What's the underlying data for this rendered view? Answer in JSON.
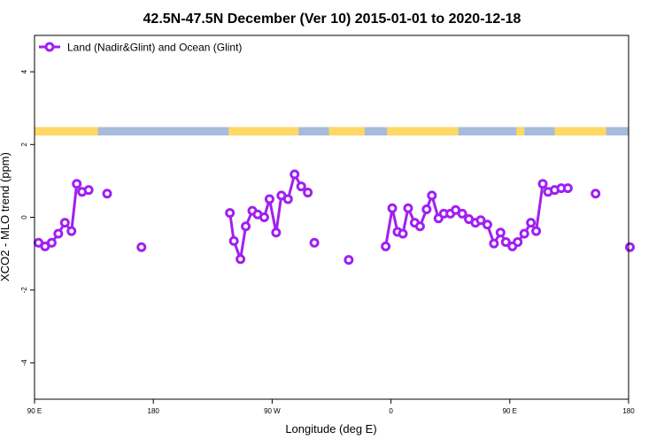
{
  "chart_data": {
    "type": "line",
    "title": "42.5N-47.5N December (Ver 10)   2015-01-01 to 2020-12-18",
    "xlabel": "Longitude (deg E)",
    "ylabel": "XCO2 - MLO trend (ppm)",
    "xlim": [
      90,
      540
    ],
    "ylim": [
      -5,
      5
    ],
    "x_ticks": [
      {
        "value": 90,
        "label": "90 E"
      },
      {
        "value": 180,
        "label": "180"
      },
      {
        "value": 270,
        "label": "90 W"
      },
      {
        "value": 360,
        "label": "0"
      },
      {
        "value": 450,
        "label": "90 E"
      },
      {
        "value": 540,
        "label": "180"
      }
    ],
    "y_ticks": [
      -4,
      -2,
      0,
      2,
      4
    ],
    "grid": false,
    "legend_position": "top-left",
    "land_ocean_strip": {
      "y_range": [
        2.25,
        2.48
      ],
      "land_color": "#FFD966",
      "ocean_color": "#A7BBDA",
      "land_x": [
        [
          90,
          138
        ],
        [
          237,
          290
        ],
        [
          313,
          340
        ],
        [
          357,
          411
        ],
        [
          455,
          461
        ],
        [
          484,
          523
        ]
      ]
    },
    "series": [
      {
        "name": "Land (Nadir&Glint) and Ocean (Glint)",
        "color": "#A020F0",
        "segments": [
          {
            "x": [
              93,
              98,
              103,
              108,
              113,
              118,
              122,
              126,
              131
            ],
            "y": [
              -0.7,
              -0.8,
              -0.7,
              -0.45,
              -0.15,
              -0.38,
              0.92,
              0.7,
              0.75
            ]
          },
          {
            "x": [
              145
            ],
            "y": [
              0.65
            ]
          },
          {
            "x": [
              171
            ],
            "y": [
              -0.82
            ]
          },
          {
            "x": [
              238,
              241,
              246,
              250,
              255,
              259,
              264,
              268,
              273,
              277,
              282,
              287,
              292,
              297
            ],
            "y": [
              0.12,
              -0.65,
              -1.15,
              -0.25,
              0.18,
              0.08,
              0.0,
              0.5,
              -0.42,
              0.6,
              0.5,
              1.18,
              0.85,
              0.68
            ]
          },
          {
            "x": [
              302
            ],
            "y": [
              -0.7
            ]
          },
          {
            "x": [
              328
            ],
            "y": [
              -1.17
            ]
          },
          {
            "x": [
              356,
              361,
              365,
              369,
              373,
              378,
              382,
              387,
              391,
              396,
              400,
              405,
              409,
              414,
              419,
              424,
              428,
              433,
              438,
              443,
              447,
              452,
              456,
              461,
              466,
              470,
              475,
              479,
              484,
              489,
              494
            ],
            "y": [
              -0.8,
              0.25,
              -0.4,
              -0.45,
              0.25,
              -0.15,
              -0.25,
              0.22,
              0.6,
              -0.03,
              0.1,
              0.1,
              0.2,
              0.1,
              -0.05,
              -0.15,
              -0.08,
              -0.2,
              -0.72,
              -0.42,
              -0.68,
              -0.8,
              -0.68,
              -0.45,
              -0.15,
              -0.38,
              0.92,
              0.7,
              0.75,
              0.8,
              0.8
            ]
          },
          {
            "x": [
              515
            ],
            "y": [
              0.65
            ]
          },
          {
            "x": [
              541
            ],
            "y": [
              -0.82
            ]
          }
        ]
      }
    ]
  }
}
